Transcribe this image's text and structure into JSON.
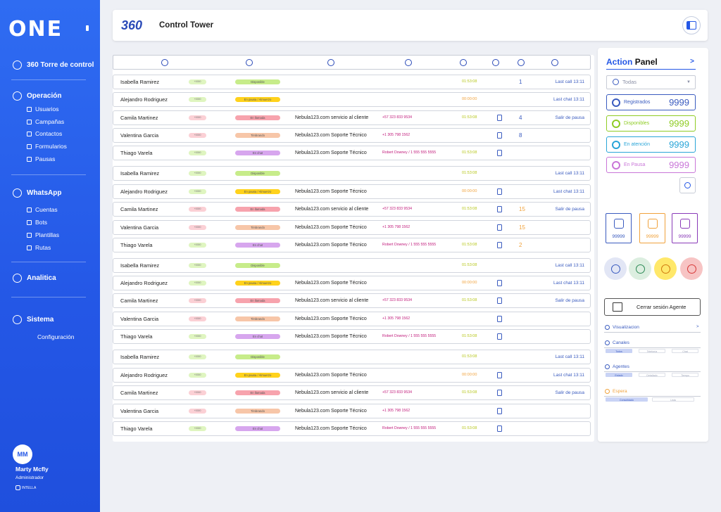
{
  "sidebar": {
    "logo": "ONE",
    "nav": [
      {
        "label": "360 Torre de control",
        "icon": "control-tower-icon"
      },
      {
        "label": "Operación",
        "icon": "operation-icon",
        "children": [
          "Usuarios",
          "Campañas",
          "Contactos",
          "Formularios",
          "Pausas"
        ]
      },
      {
        "label": "WhatsApp",
        "icon": "whatsapp-icon",
        "children": [
          "Cuentas",
          "Bots",
          "Plantillas",
          "Rutas"
        ]
      },
      {
        "label": "Analitica",
        "icon": "analytics-icon"
      },
      {
        "label": "Sistema",
        "icon": "gear-icon",
        "children": [
          "Configuración"
        ]
      }
    ],
    "user": {
      "initials": "MM",
      "name": "Marty Mcfly",
      "role": "Administrador",
      "brand": "INTELLA"
    }
  },
  "header": {
    "logo": "360",
    "title": "Control Tower"
  },
  "table": {
    "header_icons": [
      "state-icon",
      "activity-icon",
      "channel-icon",
      "contact-icon",
      "timer-icon",
      "device-icon",
      "queue-icon",
      "history-icon"
    ],
    "rows": [
      {
        "name": "Isabella Ramirez",
        "ext": "+0000",
        "status": "Disponible",
        "channel": "",
        "contact": "",
        "time": "01:53:08",
        "count": "1",
        "last": "Last call 13:11"
      },
      {
        "name": "Alejandro Rodriguez",
        "ext": "+0000",
        "status": "En pausa / Almuerzo",
        "channel": "",
        "contact": "",
        "time": "00:00:00",
        "count": "",
        "last": "Last chat 13:11"
      },
      {
        "name": "Camila Martinez",
        "ext": "+0000",
        "status": "En llamada",
        "channel": "Nebula123.com servicio al cliente",
        "contact": "+57 323 833 9534",
        "time": "01:53:08",
        "count": "4",
        "last": "Salir de pausa"
      },
      {
        "name": "Valentina Garcia",
        "ext": "+0000",
        "status": "Timbrando",
        "channel": "Nebula123.com Soporte Técnico",
        "contact": "+1 305 798 1562",
        "time": "",
        "count": "8",
        "last": ""
      },
      {
        "name": "Thiago Varela",
        "ext": "+0000",
        "status": "En chat",
        "channel": "Nebula123.com Soporte Técnico",
        "contact": "Robert Downey / 1 555 555 5555",
        "time": "01:53:08",
        "count": "",
        "last": ""
      },
      {
        "name": "Isabella Ramirez",
        "ext": "+0000",
        "status": "Disponible",
        "channel": "",
        "contact": "",
        "time": "01:53:08",
        "count": "",
        "last": "Last call 13:11"
      },
      {
        "name": "Alejandro Rodriguez",
        "ext": "+0000",
        "status": "En pausa / Almuerzo",
        "channel": "Nebula123.com Soporte Técnico",
        "contact": "",
        "time": "00:00:00",
        "count": "",
        "last": "Last chat 13:11"
      },
      {
        "name": "Camila Martinez",
        "ext": "+0000",
        "status": "En llamada",
        "channel": "Nebula123.com servicio al cliente",
        "contact": "+57 323 833 9534",
        "time": "01:53:08",
        "count": "15",
        "last": "Salir de pausa"
      },
      {
        "name": "Valentina Garcia",
        "ext": "+0000",
        "status": "Timbrando",
        "channel": "Nebula123.com Soporte Técnico",
        "contact": "+1 305 798 1562",
        "time": "",
        "count": "15",
        "last": ""
      },
      {
        "name": "Thiago Varela",
        "ext": "+0000",
        "status": "En chat",
        "channel": "Nebula123.com Soporte Técnico",
        "contact": "Robert Downey / 1 555 555 5555",
        "time": "01:53:08",
        "count": "2",
        "last": ""
      },
      {
        "name": "Isabella Ramirez",
        "ext": "+0000",
        "status": "Disponible",
        "channel": "",
        "contact": "",
        "time": "01:53:08",
        "count": "",
        "last": "Last call 13:11"
      },
      {
        "name": "Alejandro Rodriguez",
        "ext": "+0000",
        "status": "En pausa / Almuerzo",
        "channel": "Nebula123.com Soporte Técnico",
        "contact": "",
        "time": "00:00:00",
        "count": "",
        "last": "Last chat 13:11"
      },
      {
        "name": "Camila Martinez",
        "ext": "+0000",
        "status": "En llamada",
        "channel": "Nebula123.com servicio al cliente",
        "contact": "+57 323 833 9534",
        "time": "01:53:08",
        "count": "",
        "last": "Salir de pausa"
      },
      {
        "name": "Valentina Garcia",
        "ext": "+0000",
        "status": "Timbrando",
        "channel": "Nebula123.com Soporte Técnico",
        "contact": "+1 305 798 1562",
        "time": "",
        "count": "",
        "last": ""
      },
      {
        "name": "Thiago Varela",
        "ext": "+0000",
        "status": "En chat",
        "channel": "Nebula123.com Soporte Técnico",
        "contact": "Robert Downey / 1 555 555 5555",
        "time": "01:53:08",
        "count": "",
        "last": ""
      },
      {
        "name": "Isabella Ramirez",
        "ext": "+0000",
        "status": "Disponible",
        "channel": "",
        "contact": "",
        "time": "01:53:08",
        "count": "",
        "last": "Last call 13:11"
      },
      {
        "name": "Alejandro Rodriguez",
        "ext": "+0000",
        "status": "En pausa / Almuerzo",
        "channel": "Nebula123.com Soporte Técnico",
        "contact": "",
        "time": "00:00:00",
        "count": "",
        "last": "Last chat 13:11"
      },
      {
        "name": "Camila Martinez",
        "ext": "+0000",
        "status": "En llamada",
        "channel": "Nebula123.com servicio al cliente",
        "contact": "+57 323 833 9534",
        "time": "01:53:08",
        "count": "",
        "last": "Salir de pausa"
      },
      {
        "name": "Valentina Garcia",
        "ext": "+0000",
        "status": "Timbrando",
        "channel": "Nebula123.com Soporte Técnico",
        "contact": "+1 305 798 1562",
        "time": "",
        "count": "",
        "last": ""
      },
      {
        "name": "Thiago Varela",
        "ext": "+0000",
        "status": "En chat",
        "channel": "Nebula123.com Soporte Técnico",
        "contact": "Robert Downey / 1 555 555 5555",
        "time": "01:53:08",
        "count": "",
        "last": ""
      }
    ]
  },
  "status_colors": {
    "Disponible": "#c7ec8a",
    "En pausa / Almuerzo": "#ffd21c",
    "En llamada": "#f7a3ad",
    "Timbrando": "#f7c6a8",
    "En chat": "#d7a6ee"
  },
  "panel": {
    "title_a": "Action",
    "title_b": "Panel",
    "arrow": ">",
    "select": "Todas",
    "stats": [
      {
        "label": "Registrados",
        "value": "9999",
        "color": "#3a5bbf"
      },
      {
        "label": "Disponibles",
        "value": "9999",
        "color": "#8fcc24"
      },
      {
        "label": "En atención",
        "value": "9999",
        "color": "#2aa5d8"
      },
      {
        "label": "En Pausa",
        "value": "9999",
        "color": "#c976d8"
      }
    ],
    "tiles": [
      {
        "value": "99999",
        "color": "#3a5bbf",
        "icon": "chat-waiting-icon"
      },
      {
        "value": "99999",
        "color": "#f0a23c",
        "icon": "queue-grid-icon"
      },
      {
        "value": "99999",
        "color": "#8a3ab8",
        "icon": "agent-clock-icon"
      }
    ],
    "actions": [
      {
        "name": "listen-icon",
        "bg": "#e2e6f5",
        "color": "#3a5bbf"
      },
      {
        "name": "agent-chat-icon",
        "bg": "#dceee0",
        "color": "#2e8b57"
      },
      {
        "name": "pause-clock-icon",
        "bg": "#ffe86a",
        "color": "#d07a10"
      },
      {
        "name": "hangup-icon",
        "bg": "#f7c4c4",
        "color": "#d83a3a"
      }
    ],
    "logout": "Cerrar sesión Agente",
    "sections": [
      {
        "title": "Visualizacion",
        "color": "#3a5bbf",
        "arrow": ">"
      },
      {
        "title": "Canales",
        "color": "#3a5bbf",
        "options": [
          "Todos",
          "Telefonía",
          "Chat"
        ]
      },
      {
        "title": "Agentes",
        "color": "#3a5bbf",
        "options": [
          "Estado",
          "Detallado",
          "Tiempo"
        ]
      },
      {
        "title": "Espera",
        "color": "#f0a23c",
        "options": [
          "Consolidado",
          "Lista"
        ]
      }
    ]
  }
}
